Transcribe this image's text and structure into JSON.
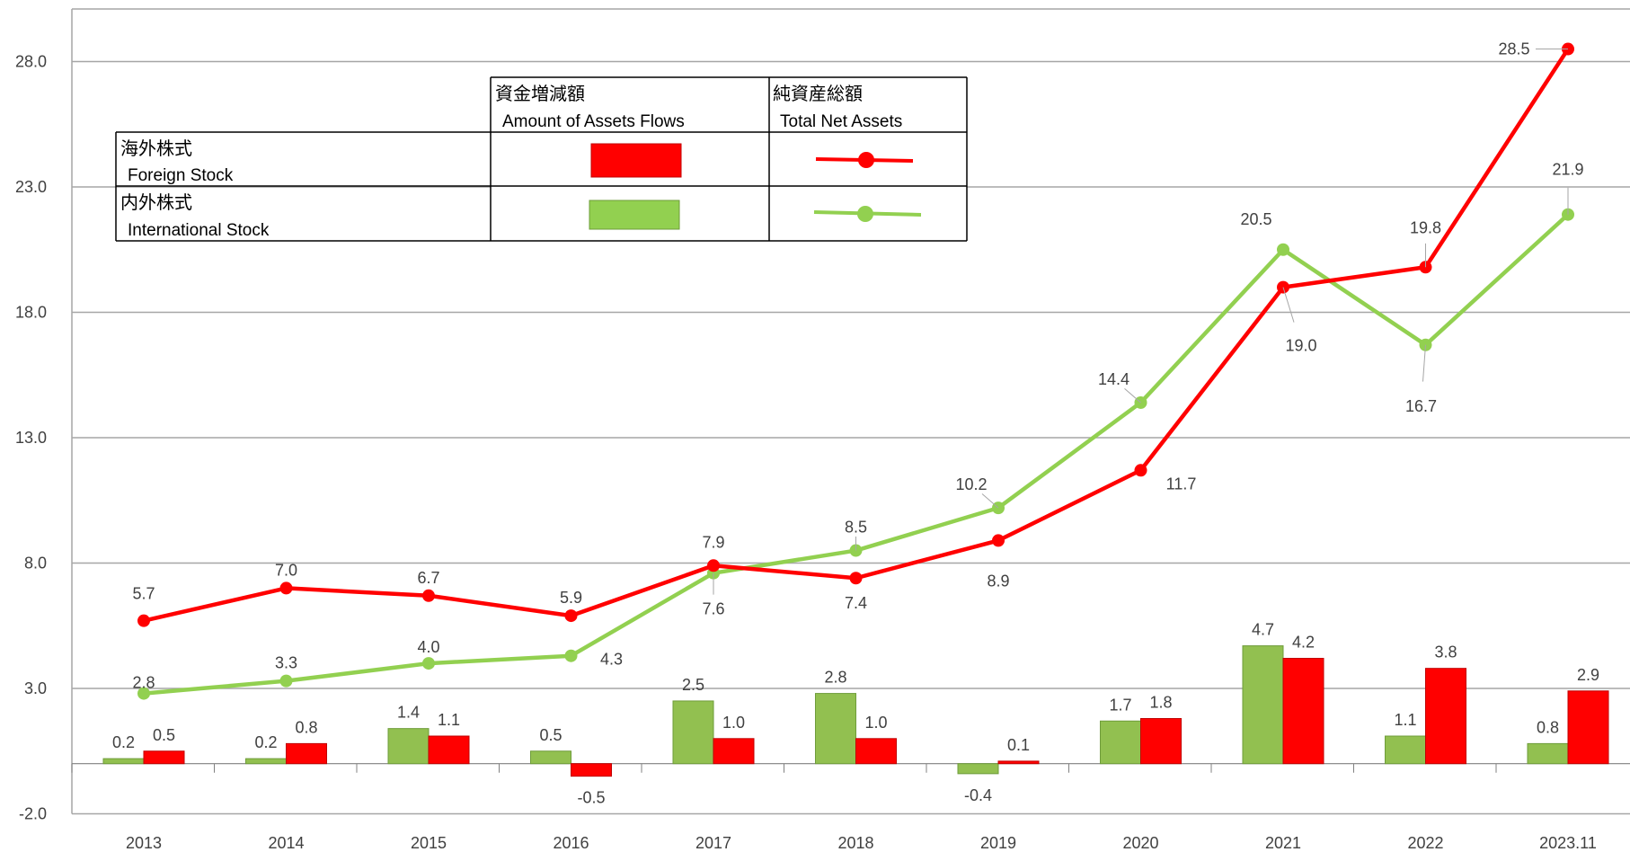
{
  "chart_data": {
    "type": "bar+line",
    "categories": [
      "2013",
      "2014",
      "2015",
      "2016",
      "2017",
      "2018",
      "2019",
      "2020",
      "2021",
      "2022",
      "2023.11"
    ],
    "ylim": [
      -2.0,
      30.0
    ],
    "yticks": [
      "28.0",
      "23.0",
      "18.0",
      "13.0",
      "8.0",
      "3.0",
      "-2.0"
    ],
    "ytick_values": [
      28,
      23,
      18,
      13,
      8,
      3,
      -2
    ],
    "grid": true,
    "bar_series": [
      {
        "name": "内外株式 International Stock",
        "color": "#92c050",
        "values": [
          0.2,
          0.2,
          1.4,
          0.5,
          2.5,
          2.8,
          -0.4,
          1.7,
          4.7,
          1.1,
          0.8
        ],
        "labels": [
          "0.2",
          "0.2",
          "1.4",
          "0.5",
          "2.5",
          "2.8",
          "-0.4",
          "1.7",
          "4.7",
          "1.1",
          "0.8"
        ]
      },
      {
        "name": "海外株式 Foreign Stock",
        "color": "#ff0000",
        "values": [
          0.5,
          0.8,
          1.1,
          -0.5,
          1.0,
          1.0,
          0.1,
          1.8,
          4.2,
          3.8,
          2.9
        ],
        "labels": [
          "0.5",
          "0.8",
          "1.1",
          "-0.5",
          "1.0",
          "1.0",
          "0.1",
          "1.8",
          "4.2",
          "3.8",
          "2.9"
        ]
      }
    ],
    "line_series": [
      {
        "name": "海外株式 Foreign Stock",
        "color": "#ff0000",
        "values": [
          5.7,
          7.0,
          6.7,
          5.9,
          7.9,
          7.4,
          8.9,
          11.7,
          19.0,
          19.8,
          28.5
        ],
        "labels": [
          "5.7",
          "7.0",
          "6.7",
          "5.9",
          "7.9",
          "7.4",
          "8.9",
          "11.7",
          "19.0",
          "19.8",
          "28.5"
        ]
      },
      {
        "name": "内外株式 International Stock",
        "color": "#92d050",
        "values": [
          2.8,
          3.3,
          4.0,
          4.3,
          7.6,
          8.5,
          10.2,
          14.4,
          20.5,
          16.7,
          21.9
        ],
        "labels": [
          "2.8",
          "3.3",
          "4.0",
          "4.3",
          "7.6",
          "8.5",
          "10.2",
          "14.4",
          "20.5",
          "16.7",
          "21.9"
        ]
      }
    ],
    "legend": {
      "position": "top-left",
      "col_flows_jp": "資金増減額",
      "col_flows_en": "Amount of Assets Flows",
      "col_assets_jp": "純資産総額",
      "col_assets_en": "Total Net Assets",
      "row_foreign_jp": "海外株式",
      "row_foreign_en": "Foreign Stock",
      "row_intl_jp": "内外株式",
      "row_intl_en": "International Stock"
    }
  }
}
